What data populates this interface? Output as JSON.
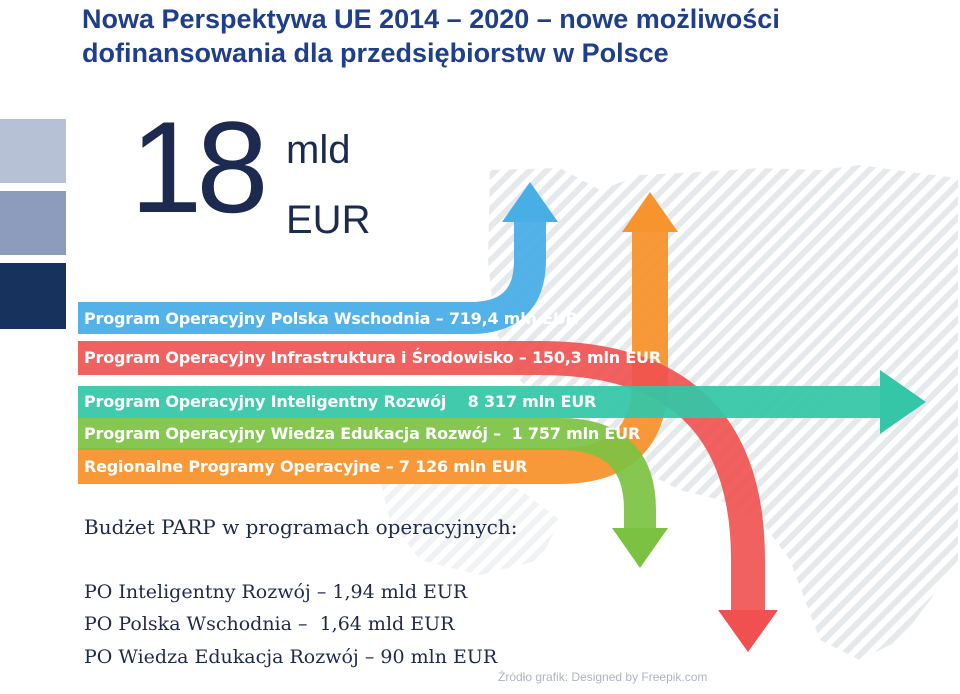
{
  "title": {
    "line1": "Nowa Perspektywa UE 2014 – 2020 – nowe możliwości",
    "line2": "dofinansowania dla przedsiębiorstw w Polsce"
  },
  "total": {
    "number": "18",
    "unit1": "mld",
    "unit2": "EUR"
  },
  "programs": [
    {
      "label": "Program Operacyjny Polska Wschodnia – 719,4 mln EUR",
      "color": "#4aaee6"
    },
    {
      "label": "Program Operacyjny Infrastruktura i Środowisko – 150,3 mln EUR",
      "color": "#f0504f"
    },
    {
      "label": "Program Operacyjny Inteligentny Rozwój    8 317 mln EUR",
      "color": "#34c6a7"
    },
    {
      "label": "Program Operacyjny Wiedza Edukacja Rozwój –  1 757 mln EUR",
      "color": "#7cc242"
    },
    {
      "label": "Regionalne Programy Operacyjne – 7 126 mln EUR",
      "color": "#f7942d"
    }
  ],
  "budget": {
    "title": "Budżet PARP w programach operacyjnych:",
    "items": [
      "PO Inteligentny Rozwój – 1,94 mld EUR",
      "PO Polska Wschodnia –  1,64 mld EUR",
      "PO Wiedza Edukacja Rozwój – 90 mln EUR"
    ]
  },
  "source": "Źródło grafik: Designed by Freepik.com",
  "colors": {
    "title": "#1f3f8a",
    "dark_navy": "#1b2a4e",
    "square_light": "#b7c1d6",
    "square_mid": "#8d9cbc",
    "square_dark": "#17325c"
  }
}
